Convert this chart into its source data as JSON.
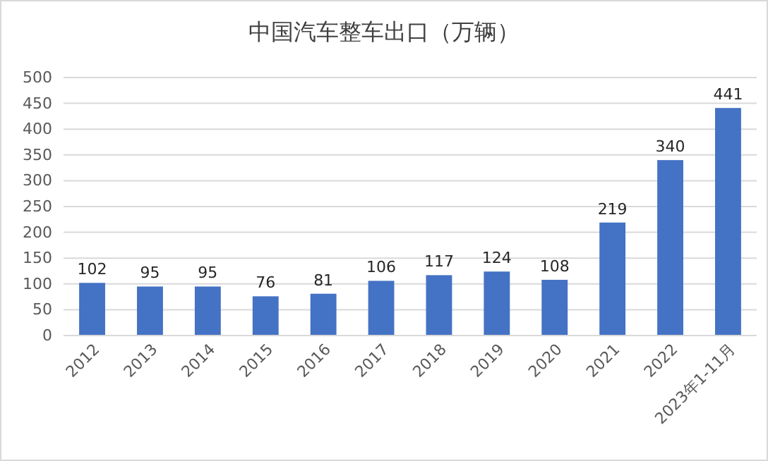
{
  "chart_data": {
    "type": "bar",
    "title": "中国汽车整车出口（万辆）",
    "categories": [
      "2012",
      "2013",
      "2014",
      "2015",
      "2016",
      "2017",
      "2018",
      "2019",
      "2020",
      "2021",
      "2022",
      "2023年1-11月"
    ],
    "values": [
      102,
      95,
      95,
      76,
      81,
      106,
      117,
      124,
      108,
      219,
      340,
      441
    ],
    "color": "#4472c4",
    "ylim": [
      0,
      500
    ],
    "yticks": [
      0,
      50,
      100,
      150,
      200,
      250,
      300,
      350,
      400,
      450,
      500
    ],
    "grid": "y",
    "data_labels": true
  }
}
